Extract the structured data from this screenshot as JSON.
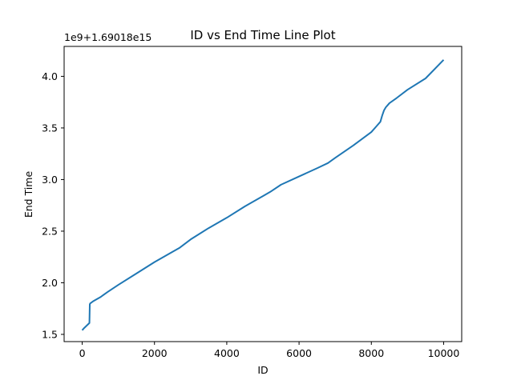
{
  "chart_data": {
    "type": "line",
    "title": "ID vs End Time Line Plot",
    "xlabel": "ID",
    "ylabel": "End Time",
    "offset_label": "1e9+1.69018e15",
    "xlim": [
      -500,
      10500
    ],
    "ylim": [
      1.43,
      4.29
    ],
    "xticks": [
      0,
      2000,
      4000,
      6000,
      8000,
      10000
    ],
    "xtick_labels": [
      "0",
      "2000",
      "4000",
      "6000",
      "8000",
      "10000"
    ],
    "yticks": [
      1.5,
      2.0,
      2.5,
      3.0,
      3.5,
      4.0
    ],
    "ytick_labels": [
      "1.5",
      "2.0",
      "2.5",
      "3.0",
      "3.5",
      "4.0"
    ],
    "grid": false,
    "series": [
      {
        "color": "#1f77b4",
        "x": [
          0,
          50,
          200,
          210,
          220,
          300,
          500,
          700,
          1000,
          1500,
          2000,
          2500,
          2700,
          3000,
          3500,
          4000,
          4500,
          5000,
          5200,
          5500,
          6000,
          6500,
          6800,
          7000,
          7500,
          8000,
          8150,
          8250,
          8300,
          8350,
          8400,
          8450,
          8500,
          8700,
          9000,
          9500,
          10000
        ],
        "y": [
          1.54,
          1.56,
          1.61,
          1.79,
          1.8,
          1.82,
          1.86,
          1.91,
          1.98,
          2.09,
          2.2,
          2.3,
          2.34,
          2.42,
          2.53,
          2.63,
          2.74,
          2.84,
          2.88,
          2.95,
          3.03,
          3.11,
          3.16,
          3.21,
          3.33,
          3.46,
          3.52,
          3.56,
          3.62,
          3.67,
          3.7,
          3.72,
          3.74,
          3.79,
          3.87,
          3.98,
          4.16
        ]
      }
    ]
  }
}
